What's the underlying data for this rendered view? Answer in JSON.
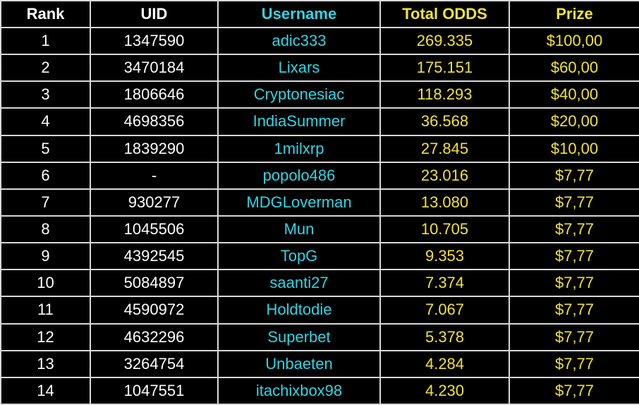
{
  "table": {
    "header": [
      "Rank",
      "UID",
      "Username",
      "Total ODDS",
      "Prize"
    ],
    "rows": [
      [
        "1",
        "1347590",
        "adic333",
        "269.335",
        "$100,00"
      ],
      [
        "2",
        "3470184",
        "Lixars",
        "175.151",
        "$60,00"
      ],
      [
        "3",
        "1806646",
        "Cryptonesiac",
        "118.293",
        "$40,00"
      ],
      [
        "4",
        "4698356",
        "IndiaSummer",
        "36.568",
        "$20,00"
      ],
      [
        "5",
        "1839290",
        "1milxrp",
        "27.845",
        "$10,00"
      ],
      [
        "6",
        "-",
        "popolo486",
        "23.016",
        "$7,77"
      ],
      [
        "7",
        "930277",
        "MDGLoverman",
        "13.080",
        "$7,77"
      ],
      [
        "8",
        "1045506",
        "Mun",
        "10.705",
        "$7,77"
      ],
      [
        "9",
        "4392545",
        "TopG",
        "9.353",
        "$7,77"
      ],
      [
        "10",
        "5084897",
        "saanti27",
        "7.374",
        "$7,77"
      ],
      [
        "11",
        "4590972",
        "Holdtodie",
        "7.067",
        "$7,77"
      ],
      [
        "12",
        "4632296",
        "Superbet",
        "5.378",
        "$7,77"
      ],
      [
        "13",
        "3264754",
        "Unbaeten",
        "4.284",
        "$7,77"
      ],
      [
        "14",
        "1047551",
        "itachixbox98",
        "4.230",
        "$7,77"
      ]
    ]
  }
}
